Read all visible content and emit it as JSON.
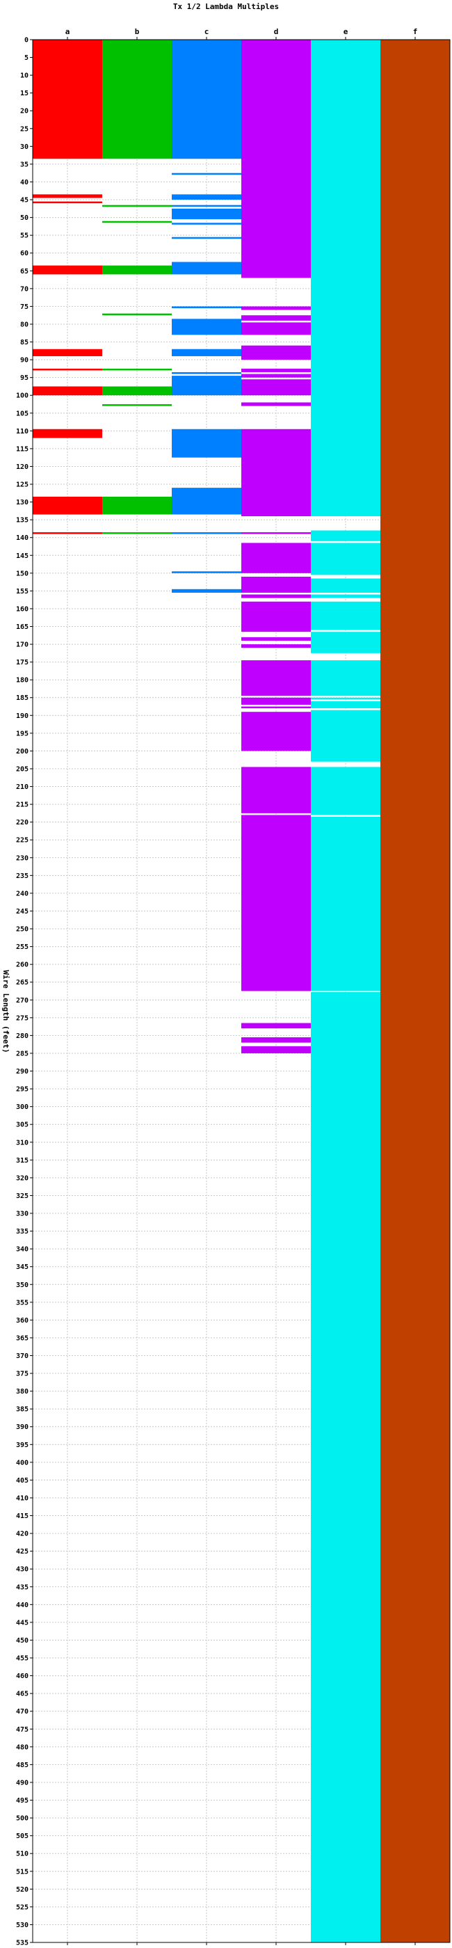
{
  "chart_data": {
    "type": "bar",
    "title": "Tx 1/2 Lambda Multiples",
    "ylabel": "Wire Length (feet)",
    "xlabel": "",
    "categories": [
      "a",
      "b",
      "c",
      "d",
      "e",
      "f"
    ],
    "ylim": [
      0,
      535
    ],
    "ytick_step": 5,
    "grid": true,
    "series": [
      {
        "category": "a",
        "color": "#ff0000",
        "segments": [
          [
            0,
            33.5
          ],
          [
            43.5,
            44.5
          ],
          [
            45.5,
            46
          ],
          [
            63.5,
            66
          ],
          [
            87,
            89
          ],
          [
            92.5,
            93
          ],
          [
            97.5,
            100
          ],
          [
            109.5,
            112
          ],
          [
            128.5,
            133.5
          ],
          [
            138.5,
            139
          ]
        ]
      },
      {
        "category": "b",
        "color": "#00c000",
        "segments": [
          [
            0,
            33.5
          ],
          [
            46.5,
            47
          ],
          [
            51,
            51.5
          ],
          [
            63.5,
            66
          ],
          [
            77,
            77.5
          ],
          [
            92.5,
            93
          ],
          [
            97.5,
            100
          ],
          [
            102.5,
            103
          ],
          [
            128.5,
            133.5
          ],
          [
            138.5,
            139
          ]
        ]
      },
      {
        "category": "c",
        "color": "#0080ff",
        "segments": [
          [
            0,
            33.5
          ],
          [
            37.5,
            38
          ],
          [
            43.5,
            45
          ],
          [
            46.5,
            47
          ],
          [
            47.5,
            50.5
          ],
          [
            51.5,
            52
          ],
          [
            55.5,
            56
          ],
          [
            62.5,
            66
          ],
          [
            75,
            75.5
          ],
          [
            78.5,
            83
          ],
          [
            87,
            89
          ],
          [
            93.5,
            94
          ],
          [
            94.5,
            100
          ],
          [
            109.5,
            117.5
          ],
          [
            126,
            133.5
          ],
          [
            138.5,
            139
          ],
          [
            149.5,
            150
          ],
          [
            154.5,
            155.5
          ]
        ]
      },
      {
        "category": "d",
        "color": "#c000ff",
        "segments": [
          [
            0,
            67
          ],
          [
            75,
            76
          ],
          [
            77.5,
            79
          ],
          [
            79.5,
            83
          ],
          [
            86,
            90
          ],
          [
            92.5,
            93.5
          ],
          [
            94,
            95
          ],
          [
            95.5,
            100
          ],
          [
            102,
            103
          ],
          [
            109.5,
            134
          ],
          [
            138.5,
            139
          ],
          [
            141.5,
            150
          ],
          [
            151,
            155.5
          ],
          [
            156,
            157
          ],
          [
            158,
            166.5
          ],
          [
            168,
            169
          ],
          [
            170,
            171
          ],
          [
            174.5,
            184.5
          ],
          [
            185,
            187
          ],
          [
            187.5,
            188
          ],
          [
            189,
            200
          ],
          [
            204.5,
            217.5
          ],
          [
            218,
            267.5
          ],
          [
            276.5,
            278
          ],
          [
            280.5,
            282
          ],
          [
            283,
            285
          ]
        ]
      },
      {
        "category": "e",
        "color": "#00f0f0",
        "segments": [
          [
            0,
            134
          ],
          [
            138,
            141
          ],
          [
            141.5,
            150.5
          ],
          [
            151.5,
            155.5
          ],
          [
            156,
            157
          ],
          [
            158,
            166
          ],
          [
            166.5,
            172.5
          ],
          [
            174.5,
            184.5
          ],
          [
            185,
            185.5
          ],
          [
            186,
            188
          ],
          [
            188.5,
            203
          ],
          [
            204.5,
            218
          ],
          [
            218.5,
            267.5
          ],
          [
            267.8,
            535
          ]
        ]
      },
      {
        "category": "f",
        "color": "#c04000",
        "segments": [
          [
            0,
            535
          ]
        ]
      }
    ]
  }
}
